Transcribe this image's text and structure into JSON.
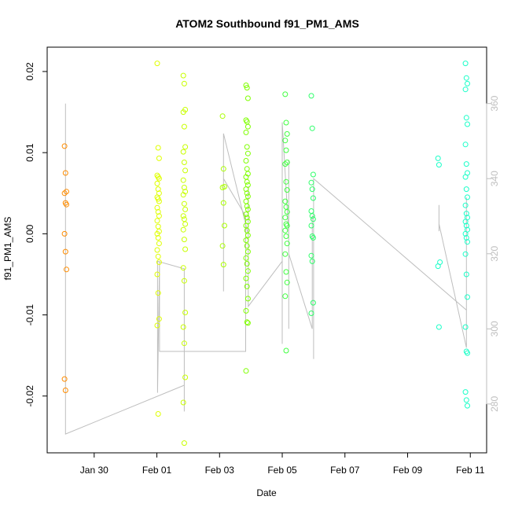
{
  "chart_data": {
    "type": "scatter",
    "title": "ATOM2 Southbound f91_PM1_AMS",
    "xlabel": "Date",
    "ylabel": "f91_PM1_AMS",
    "y_ticks": [
      "-0.02",
      "-0.01",
      "0.00",
      "0.01",
      "0.02"
    ],
    "y_tick_values": [
      -0.02,
      -0.01,
      0.0,
      0.01,
      0.02
    ],
    "ylim": [
      -0.027,
      0.023
    ],
    "y2_ticks": [
      "280",
      "300",
      "320",
      "340",
      "360"
    ],
    "y2_tick_values": [
      280,
      300,
      320,
      340,
      360
    ],
    "y2lim": [
      267,
      375
    ],
    "x_ticks": [
      "Jan 30",
      "Feb 01",
      "Feb 03",
      "Feb 05",
      "Feb 07",
      "Feb 09",
      "Feb 11"
    ],
    "x_tick_values": [
      "2024-01-30",
      "2024-02-01",
      "2024-02-03",
      "2024-02-05",
      "2024-02-07",
      "2024-02-09",
      "2024-02-11"
    ],
    "xlim": [
      "2024-01-28 12:00",
      "2024-02-11 12:30"
    ],
    "grid": false,
    "legend": "none",
    "colors": {
      "axis": "#000000",
      "right_axis": "#bebebe",
      "line": "#bebebe",
      "points": [
        "#ff8c00",
        "#dfff00",
        "#c8ff00",
        "#aaff00",
        "#7fff00",
        "#40ff40",
        "#2eff6a",
        "#1affc8"
      ]
    },
    "point_groups": [
      {
        "x": "2024-01-29 02:00",
        "color": "#ff8c00",
        "y": [
          0.0108,
          0.0075,
          0.0052,
          0.005,
          0.0038,
          0.0036,
          0.0,
          -0.0022,
          -0.0044,
          -0.0179,
          -0.0193
        ]
      },
      {
        "x": "2024-02-01 01:00",
        "color": "#dfff00",
        "y": [
          0.021,
          0.0106,
          0.0093,
          0.0072,
          0.007,
          0.0068,
          0.0062,
          0.0055,
          0.005,
          0.0045,
          0.0043,
          0.004,
          0.0032,
          0.0027,
          0.0022,
          0.0016,
          0.0009,
          0.0003,
          0.0,
          -0.0005,
          -0.0012,
          -0.002,
          -0.0028,
          -0.0035,
          -0.005,
          -0.0073,
          -0.0105,
          -0.0113,
          -0.0222
        ]
      },
      {
        "x": "2024-02-01 21:00",
        "color": "#c8ff00",
        "y": [
          0.0195,
          0.0185,
          0.0153,
          0.015,
          0.0132,
          0.0107,
          0.0101,
          0.0088,
          0.0078,
          0.0066,
          0.0057,
          0.0052,
          0.0048,
          0.0037,
          0.003,
          0.0022,
          0.0018,
          0.0012,
          0.0005,
          -0.0007,
          -0.0019,
          -0.0042,
          -0.0058,
          -0.0097,
          -0.0115,
          -0.0135,
          -0.0177,
          -0.0208,
          -0.0258
        ]
      },
      {
        "x": "2024-02-03 03:00",
        "color": "#aaff00",
        "y": [
          0.0145,
          0.008,
          0.0058,
          0.0057,
          0.0038,
          0.001,
          -0.0015,
          -0.0038
        ]
      },
      {
        "x": "2024-02-03 21:00",
        "color": "#7fff00",
        "y": [
          0.0183,
          0.018,
          0.0167,
          0.014,
          0.0138,
          0.0132,
          0.0125,
          0.0107,
          0.0099,
          0.009,
          0.008,
          0.0074,
          0.007,
          0.0064,
          0.006,
          0.0055,
          0.005,
          0.0046,
          0.004,
          0.0034,
          0.003,
          0.0024,
          0.002,
          0.0015,
          0.001,
          0.0004,
          -0.0002,
          -0.0008,
          -0.0015,
          -0.0022,
          -0.003,
          -0.0037,
          -0.0046,
          -0.0055,
          -0.0065,
          -0.008,
          -0.0095,
          -0.0109,
          -0.011,
          -0.0169
        ]
      },
      {
        "x": "2024-02-05 03:00",
        "color": "#40ff40",
        "y": [
          0.0172,
          0.0137,
          0.0123,
          0.0115,
          0.0103,
          0.0088,
          0.0086,
          0.0064,
          0.0054,
          0.004,
          0.0033,
          0.0027,
          0.002,
          0.0012,
          0.001,
          0.0004,
          -0.0003,
          -0.0012,
          -0.0025,
          -0.0047,
          -0.006,
          -0.0077,
          -0.0144
        ]
      },
      {
        "x": "2024-02-05 23:00",
        "color": "#2eff6a",
        "y": [
          0.017,
          0.013,
          0.0073,
          0.0063,
          0.0055,
          0.0044,
          0.0028,
          0.0022,
          0.0018,
          0.001,
          -0.0003,
          -0.0005,
          -0.0027,
          -0.0034,
          -0.0085,
          -0.0098
        ]
      },
      {
        "x": "2024-02-10 00:00",
        "color": "#1affc8",
        "y": [
          0.0093,
          0.0085,
          -0.0035,
          -0.004,
          -0.0115
        ]
      },
      {
        "x": "2024-02-10 21:00",
        "color": "#1affc8",
        "y": [
          0.021,
          0.0192,
          0.0185,
          0.0178,
          0.0143,
          0.0135,
          0.011,
          0.0086,
          0.0075,
          0.007,
          0.0055,
          0.0045,
          0.0035,
          0.0025,
          0.002,
          0.0015,
          0.001,
          0.0005,
          0.0,
          -0.0005,
          -0.001,
          -0.0025,
          -0.005,
          -0.0078,
          -0.0115,
          -0.0145,
          -0.0147,
          -0.0195,
          -0.0205,
          -0.0212
        ]
      }
    ],
    "gray_line_right_axis": [
      [
        "2024-01-29 02:00",
        272
      ],
      [
        "2024-01-29 02:00",
        360
      ],
      [
        "2024-01-29 02:00",
        300
      ],
      [
        "2024-01-29 02:00",
        272
      ],
      [
        "2024-02-01 21:00",
        285
      ],
      [
        "2024-02-01 21:00",
        315
      ],
      [
        "2024-02-01 21:00",
        278
      ],
      [
        "2024-02-01 21:00",
        316
      ],
      [
        "2024-02-01 00:30",
        318
      ],
      [
        "2024-02-01 00:30",
        283
      ],
      [
        "2024-02-01 02:00",
        318
      ],
      [
        "2024-02-01 02:00",
        294
      ],
      [
        "2024-02-03 20:00",
        294
      ],
      [
        "2024-02-03 20:00",
        310
      ],
      [
        "2024-02-03 20:00",
        330
      ],
      [
        "2024-02-03 03:00",
        340
      ],
      [
        "2024-02-03 03:00",
        310
      ],
      [
        "2024-02-03 03:00",
        352
      ],
      [
        "2024-02-03 22:00",
        325
      ],
      [
        "2024-02-03 22:00",
        338
      ],
      [
        "2024-02-03 22:00",
        306
      ],
      [
        "2024-02-05 00:00",
        318
      ],
      [
        "2024-02-05 00:00",
        296
      ],
      [
        "2024-02-05 00:00",
        355
      ],
      [
        "2024-02-05 05:00",
        325
      ],
      [
        "2024-02-05 05:00",
        300
      ],
      [
        "2024-02-05 05:00",
        345
      ],
      [
        "2024-02-05 05:00",
        320
      ],
      [
        "2024-02-05 23:00",
        300
      ],
      [
        "2024-02-05 23:00",
        330
      ],
      [
        "2024-02-06 00:00",
        330
      ],
      [
        "2024-02-06 00:00",
        292
      ],
      [
        "2024-02-06 00:00",
        340
      ],
      [
        "2024-02-10 21:00",
        305
      ],
      [
        "2024-02-10 21:00",
        335
      ],
      [
        "2024-02-10 21:00",
        295
      ],
      [
        "2024-02-10 00:00",
        328
      ],
      [
        "2024-02-10 00:00",
        333
      ],
      [
        "2024-02-10 00:00",
        326
      ]
    ]
  }
}
